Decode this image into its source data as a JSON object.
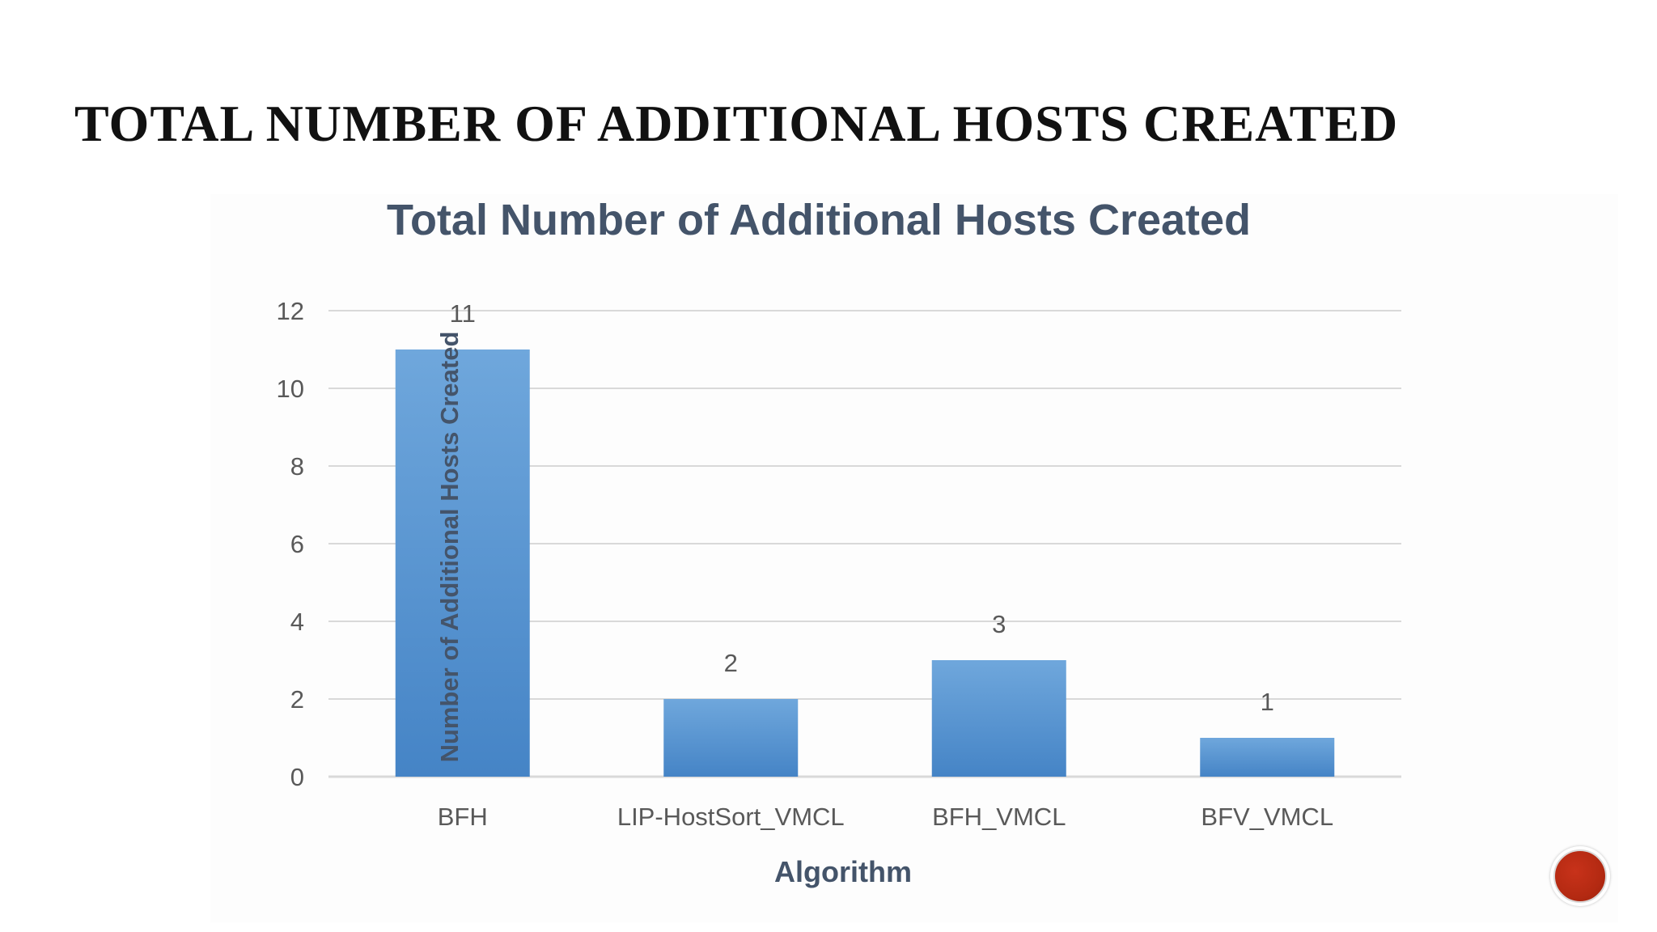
{
  "slide": {
    "title": "TOTAL NUMBER OF ADDITIONAL HOSTS CREATED"
  },
  "chart_data": {
    "type": "bar",
    "title": "Total Number of Additional Hosts Created",
    "xlabel": "Algorithm",
    "ylabel": "Number of Additional Hosts Created",
    "categories": [
      "BFH",
      "LIP-HostSort_VMCL",
      "BFH_VMCL",
      "BFV_VMCL"
    ],
    "values": [
      11,
      2,
      3,
      1
    ],
    "data_labels": [
      "11",
      "2",
      "3",
      "1"
    ],
    "ylim": [
      0,
      12
    ],
    "yticks": [
      0,
      2,
      4,
      6,
      8,
      10,
      12
    ],
    "grid": true,
    "legend": "none",
    "colors": {
      "bar_top": "#6fa7dc",
      "bar_bottom": "#4584c6",
      "title": "#44546a",
      "axis_text": "#595959",
      "grid": "#d9d9d9"
    }
  },
  "nav": {
    "button_icon": "red-circle-icon",
    "button_color": "#b42a12"
  }
}
